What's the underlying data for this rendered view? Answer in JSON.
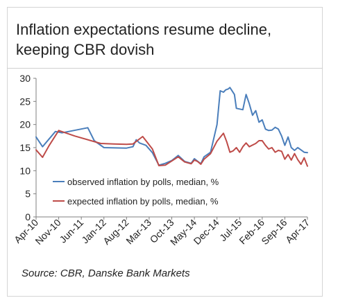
{
  "title_lines": [
    "Inflation expectations resume decline,",
    "keeping CBR dovish"
  ],
  "source": "Source: CBR, Danske Bank Markets",
  "colors": {
    "observed": "#4a7ebb",
    "expected": "#be4b48",
    "axis": "#7f7f7f"
  },
  "chart_data": {
    "type": "line",
    "title": "Inflation expectations resume decline, keeping CBR dovish",
    "xlabel": "",
    "ylabel": "",
    "ylim": [
      0,
      30
    ],
    "yticks": [
      0,
      5,
      10,
      15,
      20,
      25,
      30
    ],
    "xlim": [
      0,
      84
    ],
    "xticks": [
      {
        "label": "Apr-10",
        "t": 0
      },
      {
        "label": "Nov-10",
        "t": 7
      },
      {
        "label": "Jun-11",
        "t": 14
      },
      {
        "label": "Jan-12",
        "t": 21
      },
      {
        "label": "Aug-12",
        "t": 28
      },
      {
        "label": "Mar-13",
        "t": 35
      },
      {
        "label": "Oct-13",
        "t": 42
      },
      {
        "label": "May-14",
        "t": 49
      },
      {
        "label": "Dec-14",
        "t": 56
      },
      {
        "label": "Jul-15",
        "t": 63
      },
      {
        "label": "Feb-16",
        "t": 70
      },
      {
        "label": "Sep-16",
        "t": 77
      },
      {
        "label": "Apr-17",
        "t": 84
      }
    ],
    "grid": false,
    "legend": "lower-left",
    "series": [
      {
        "name": "observed inflation by polls, median, %",
        "color": "#4a7ebb",
        "x": [
          0,
          2,
          6,
          8,
          16,
          18,
          21,
          28,
          30,
          31,
          32,
          34,
          36,
          38,
          40,
          42,
          44,
          46,
          48,
          49,
          51,
          52,
          54,
          56,
          57,
          58,
          58.7,
          59.5,
          60,
          61.4,
          62,
          64,
          65,
          66,
          67,
          68,
          69,
          70,
          71,
          72,
          73,
          74,
          75,
          76,
          77,
          78,
          79,
          80,
          81,
          82,
          83,
          84
        ],
        "y": [
          17.3,
          15.2,
          18.5,
          18.2,
          19.3,
          16.5,
          15.0,
          14.9,
          15.2,
          16.7,
          16.0,
          15.5,
          13.9,
          11.2,
          11.6,
          12.2,
          13.3,
          12.0,
          11.6,
          12.6,
          11.5,
          13.0,
          14.0,
          20.0,
          27.3,
          27.0,
          27.5,
          27.7,
          28.0,
          26.5,
          23.5,
          23.2,
          26.5,
          24.5,
          22.0,
          23.0,
          20.5,
          21.0,
          19.0,
          18.7,
          18.8,
          19.4,
          19.0,
          17.5,
          15.5,
          17.3,
          15.0,
          14.4,
          15.0,
          14.5,
          14.0,
          13.9
        ]
      },
      {
        "name": "expected inflation by polls, median, %",
        "color": "#be4b48",
        "x": [
          0,
          2,
          4,
          7,
          12,
          20,
          24,
          28,
          30,
          33,
          36,
          38,
          40,
          42,
          44,
          46,
          48,
          49,
          50,
          51,
          52,
          54,
          56,
          58,
          59,
          60,
          61,
          62,
          63,
          64,
          65,
          66,
          68,
          69,
          70,
          71,
          72,
          73,
          74,
          75,
          76,
          77,
          78,
          79,
          80,
          81,
          82,
          83,
          84
        ],
        "y": [
          14.5,
          12.9,
          15.4,
          18.7,
          17.5,
          15.9,
          15.8,
          15.7,
          15.8,
          17.4,
          14.7,
          11.1,
          11.2,
          12.1,
          13.0,
          11.9,
          11.5,
          12.3,
          12.0,
          11.4,
          12.5,
          13.7,
          16.4,
          18.1,
          16.3,
          14.0,
          14.3,
          15.0,
          14.0,
          15.2,
          16.0,
          15.2,
          15.9,
          16.5,
          16.5,
          15.5,
          14.7,
          15.0,
          14.0,
          14.4,
          14.2,
          12.5,
          13.5,
          12.3,
          13.7,
          12.4,
          11.4,
          12.8,
          11.0
        ]
      }
    ]
  }
}
